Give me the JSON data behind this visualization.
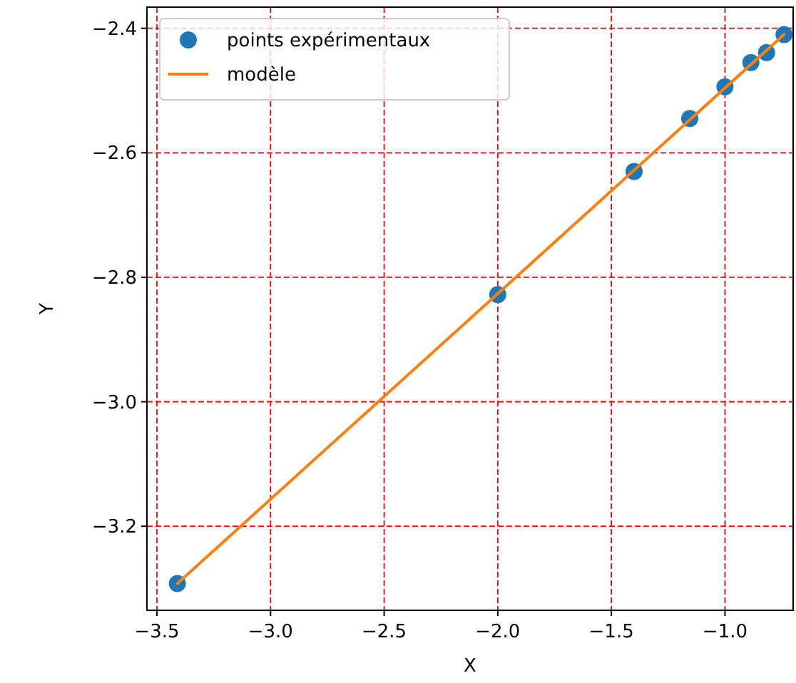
{
  "chart_data": {
    "type": "scatter",
    "xlabel": "X",
    "ylabel": "Y",
    "xlim": [
      -3.544,
      -0.7
    ],
    "ylim": [
      -3.335,
      -2.366
    ],
    "xticks": [
      {
        "value": -3.5,
        "label": "−3.5"
      },
      {
        "value": -3.0,
        "label": "−3.0"
      },
      {
        "value": -2.5,
        "label": "−2.5"
      },
      {
        "value": -2.0,
        "label": "−2.0"
      },
      {
        "value": -1.5,
        "label": "−1.5"
      },
      {
        "value": -1.0,
        "label": "−1.0"
      }
    ],
    "yticks": [
      {
        "value": -3.2,
        "label": "−3.2"
      },
      {
        "value": -3.0,
        "label": "−3.0"
      },
      {
        "value": -2.8,
        "label": "−2.8"
      },
      {
        "value": -2.6,
        "label": "−2.6"
      },
      {
        "value": -2.4,
        "label": "−2.4"
      }
    ],
    "grid": true,
    "legend": "top left",
    "series": [
      {
        "name": "points expérimentaux",
        "marker": "circle",
        "color": "#1f77b4",
        "x": [
          -3.41,
          -2.0,
          -1.4,
          -1.155,
          -1.0,
          -0.886,
          -0.817,
          -0.74
        ],
        "values": [
          -3.292,
          -2.828,
          -2.63,
          -2.545,
          -2.494,
          -2.455,
          -2.439,
          -2.41
        ]
      },
      {
        "name": "modèle",
        "type": "line",
        "line_style": "solid",
        "color": "#ff7f0e",
        "x": [
          -3.41,
          -0.74
        ],
        "values": [
          -3.292,
          -2.41
        ]
      }
    ]
  }
}
